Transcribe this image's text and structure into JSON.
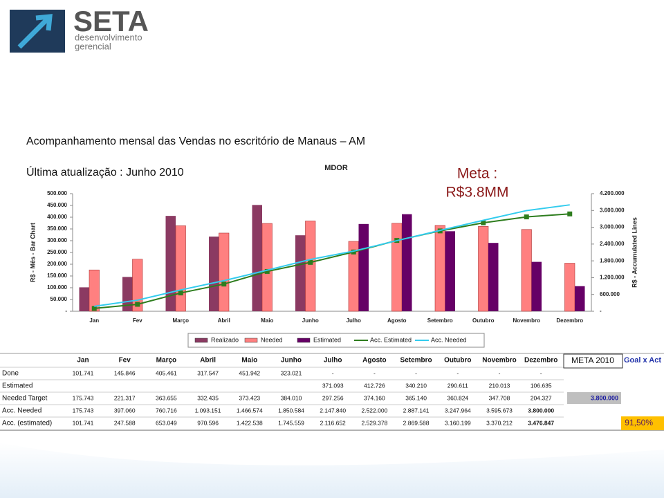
{
  "header": {
    "logo": "SETA",
    "logo_line1": "desenvolvimento",
    "logo_line2": "gerencial",
    "title": "Acompanhamento mensal das Vendas no escritório de Manaus – AM",
    "subtitle": "Última atualização : Junho 2010"
  },
  "chart_data": {
    "type": "combo",
    "title": "MDOR",
    "annotation": [
      "Meta :",
      "R$3.8MM"
    ],
    "ylabel": "R$ - Mês - Bar Chart",
    "y2label": "R$ - Accumulated Lines",
    "categories": [
      "Jan",
      "Fev",
      "Março",
      "Abril",
      "Maio",
      "Junho",
      "Julho",
      "Agosto",
      "Setembro",
      "Outubro",
      "Novembro",
      "Dezembro"
    ],
    "series": [
      {
        "name": "Realizado",
        "type": "bar",
        "color": "#8b3a62",
        "values": [
          101741,
          145846,
          405461,
          317547,
          451942,
          323021,
          null,
          null,
          null,
          null,
          null,
          null
        ]
      },
      {
        "name": "Needed",
        "type": "bar",
        "color": "#ff8080",
        "values": [
          175743,
          221317,
          363655,
          332435,
          373423,
          384010,
          297256,
          374160,
          365140,
          360824,
          347708,
          204327
        ]
      },
      {
        "name": "Estimated",
        "type": "bar",
        "color": "#660066",
        "values": [
          null,
          null,
          null,
          null,
          null,
          null,
          371093,
          412726,
          340210,
          290611,
          210013,
          106635
        ]
      },
      {
        "name": "Acc. Estimated",
        "type": "line",
        "axis": "y2",
        "color": "#2e7d1e",
        "values": [
          101741,
          247588,
          653049,
          970596,
          1422538,
          1745559,
          2116652,
          2529378,
          2869588,
          3160199,
          3370212,
          3476847
        ]
      },
      {
        "name": "Acc. Needed",
        "type": "line",
        "axis": "y2",
        "color": "#33ccee",
        "values": [
          175743,
          397060,
          760716,
          1093151,
          1466574,
          1850584,
          2147840,
          2522000,
          2887141,
          3247964,
          3595673,
          3800000
        ]
      }
    ],
    "ylim": [
      0,
      500000
    ],
    "yticks": [
      {
        "value": 0,
        "label": "-"
      },
      {
        "value": 50000,
        "label": "50.000"
      },
      {
        "value": 100000,
        "label": "100.000"
      },
      {
        "value": 150000,
        "label": "150.000"
      },
      {
        "value": 200000,
        "label": "200.000"
      },
      {
        "value": 250000,
        "label": "250.000"
      },
      {
        "value": 300000,
        "label": "300.000"
      },
      {
        "value": 350000,
        "label": "350.000"
      },
      {
        "value": 400000,
        "label": "400.000"
      },
      {
        "value": 450000,
        "label": "450.000"
      },
      {
        "value": 500000,
        "label": "500.000"
      }
    ],
    "y2lim": [
      0,
      4200000
    ],
    "y2ticks": [
      {
        "value": 0,
        "label": "-"
      },
      {
        "value": 600000,
        "label": "600.000"
      },
      {
        "value": 1200000,
        "label": "1.200.000"
      },
      {
        "value": 1800000,
        "label": "1.800.000"
      },
      {
        "value": 2400000,
        "label": "2.400.000"
      },
      {
        "value": 3000000,
        "label": "3.000.000"
      },
      {
        "value": 3600000,
        "label": "3.600.000"
      },
      {
        "value": 4200000,
        "label": "4.200.000"
      }
    ]
  },
  "table": {
    "headers": [
      "Jan",
      "Fev",
      "Março",
      "Abril",
      "Maio",
      "Junho",
      "Julho",
      "Agosto",
      "Setembro",
      "Outubro",
      "Novembro",
      "Dezembro"
    ],
    "rows": [
      {
        "label": "Done",
        "cells": [
          "101.741",
          "145.846",
          "405.461",
          "317.547",
          "451.942",
          "323.021",
          "-",
          "-",
          "-",
          "-",
          "-",
          "-"
        ]
      },
      {
        "label": "Estimated",
        "cells": [
          null,
          null,
          null,
          null,
          null,
          null,
          "371.093",
          "412.726",
          "340.210",
          "290.611",
          "210.013",
          "106.635"
        ]
      },
      {
        "label": "Needed Target",
        "cells": [
          "175.743",
          "221.317",
          "363.655",
          "332.435",
          "373.423",
          "384.010",
          "297.256",
          "374.160",
          "365.140",
          "360.824",
          "347.708",
          "204.327"
        ]
      },
      {
        "label": "Acc. Needed",
        "cells": [
          "175.743",
          "397.060",
          "760.716",
          "1.093.151",
          "1.466.574",
          "1.850.584",
          "2.147.840",
          "2.522.000",
          "2.887.141",
          "3.247.964",
          "3.595.673",
          "3.800.000"
        ]
      },
      {
        "label": "Acc. (estimated)",
        "cells": [
          "101.741",
          "247.588",
          "653.049",
          "970.596",
          "1.422.538",
          "1.745.559",
          "2.116.652",
          "2.529.378",
          "2.869.588",
          "3.160.199",
          "3.370.212",
          "3.476.847"
        ]
      }
    ],
    "meta": {
      "header": "META 2010",
      "value": "3.800.000"
    },
    "goal": {
      "header": "Goal x Act",
      "value": "91,50%"
    }
  }
}
